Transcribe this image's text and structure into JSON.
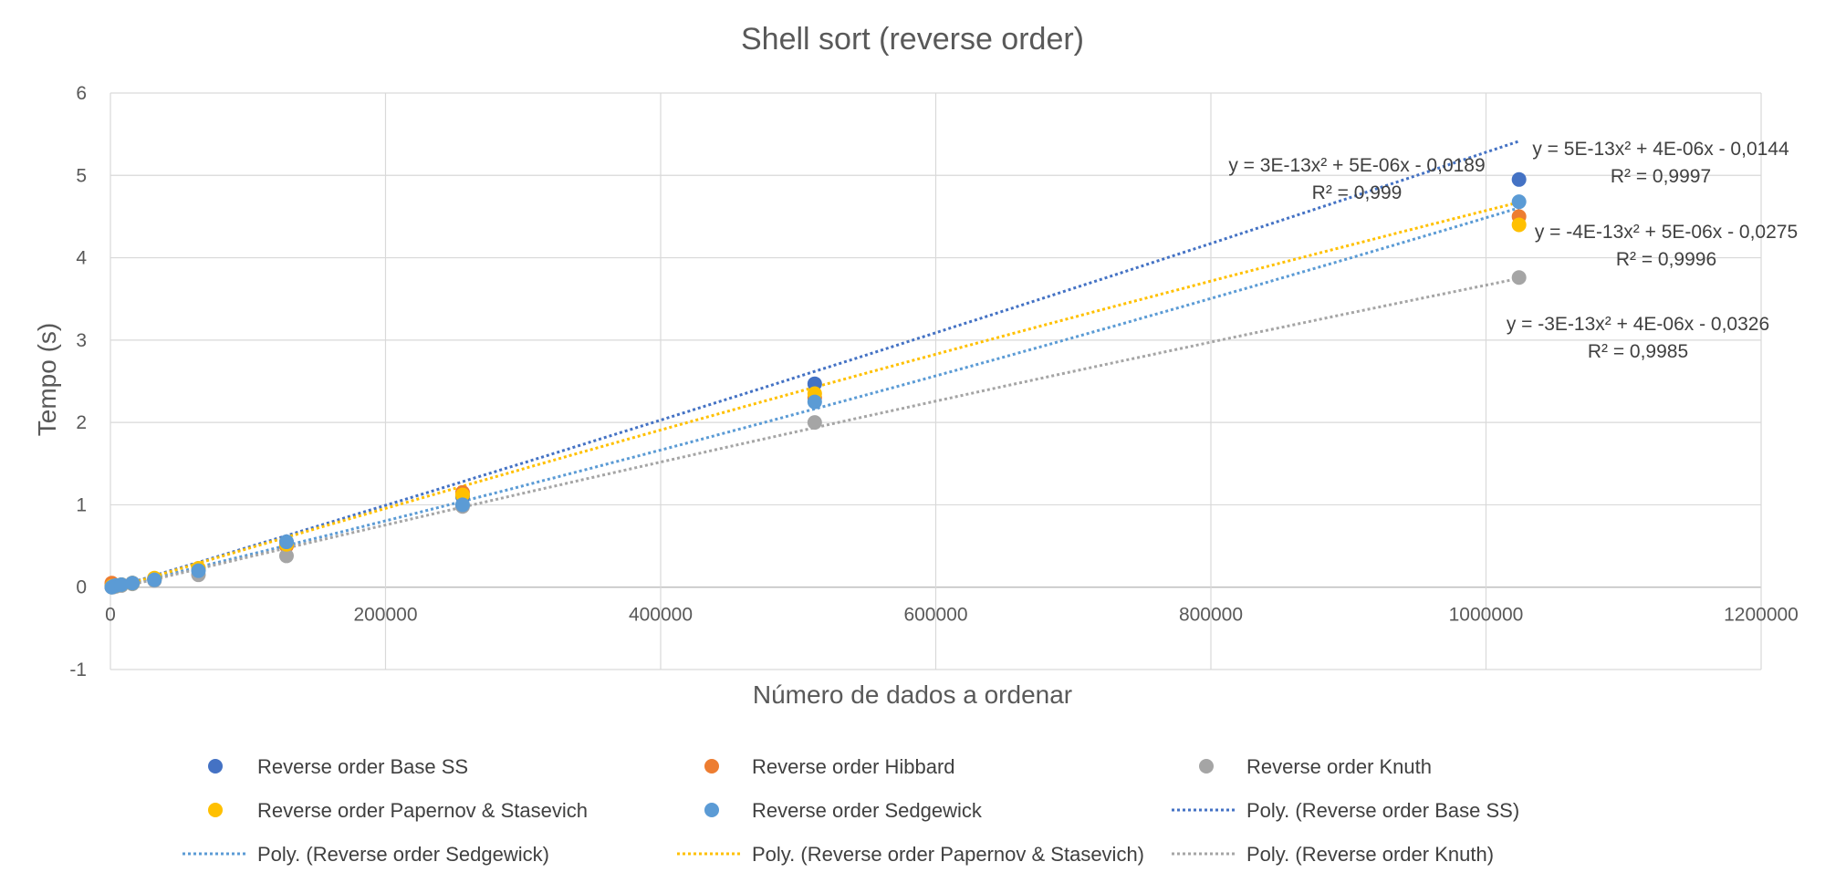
{
  "chart_data": {
    "type": "scatter",
    "title": "Shell sort (reverse order)",
    "xlabel": "Número de dados a ordenar",
    "ylabel": "Tempo (s)",
    "xlim": [
      0,
      1200000
    ],
    "ylim": [
      -1,
      6
    ],
    "x_ticks": [
      "0",
      "200000",
      "400000",
      "600000",
      "800000",
      "1000000",
      "1200000"
    ],
    "y_ticks": [
      "-1",
      "0",
      "1",
      "2",
      "3",
      "4",
      "5",
      "6"
    ],
    "grid": true,
    "legend_position": "bottom",
    "x": [
      1000,
      2000,
      4000,
      8000,
      16000,
      32000,
      64000,
      128000,
      256000,
      512000,
      1024000
    ],
    "series": [
      {
        "name": "Reverse order Base SS",
        "color": "#4472C4",
        "values": [
          0.01,
          0.01,
          0.02,
          0.03,
          0.05,
          0.1,
          0.22,
          0.55,
          1.1,
          2.47,
          4.95
        ]
      },
      {
        "name": "Reverse order Hibbard",
        "color": "#ED7D31",
        "values": [
          0.05,
          0.03,
          0.02,
          0.03,
          0.05,
          0.1,
          0.22,
          0.5,
          1.15,
          2.3,
          4.5
        ]
      },
      {
        "name": "Reverse order Knuth",
        "color": "#A5A5A5",
        "values": [
          0.0,
          0.0,
          0.01,
          0.02,
          0.04,
          0.08,
          0.15,
          0.38,
          0.98,
          2.0,
          3.76
        ]
      },
      {
        "name": "Reverse order Papernov & Stasevich",
        "color": "#FFC000",
        "values": [
          0.01,
          0.01,
          0.02,
          0.03,
          0.05,
          0.11,
          0.23,
          0.52,
          1.12,
          2.35,
          4.4
        ]
      },
      {
        "name": "Reverse order Sedgewick",
        "color": "#5B9BD5",
        "values": [
          0.0,
          0.01,
          0.02,
          0.03,
          0.05,
          0.09,
          0.2,
          0.55,
          1.0,
          2.25,
          4.68
        ]
      }
    ],
    "trendlines": [
      {
        "name": "Poly. (Reverse order Base SS)",
        "color": "#4472C4",
        "coef": [
          3e-13,
          5e-06,
          -0.0189
        ],
        "equation": "y = 3E-13x² + 5E-06x - 0,0189",
        "r2": "R² = 0,999"
      },
      {
        "name": "Poly. (Reverse order Sedgewick)",
        "color": "#5B9BD5",
        "coef": [
          5e-13,
          4e-06,
          -0.0144
        ],
        "equation": "y = 5E-13x² + 4E-06x - 0,0144",
        "r2": "R² = 0,9997"
      },
      {
        "name": "Poly. (Reverse order Papernov & Stasevich)",
        "color": "#FFC000",
        "coef": [
          -4e-13,
          5e-06,
          -0.0275
        ],
        "equation": "y = -4E-13x² + 5E-06x - 0,0275",
        "r2": "R² = 0,9996"
      },
      {
        "name": "Poly. (Reverse order Knuth)",
        "color": "#A5A5A5",
        "coef": [
          -3e-13,
          4e-06,
          -0.0326
        ],
        "equation": "y = -3E-13x² + 4E-06x - 0,0326",
        "r2": "R² = 0,9985"
      }
    ]
  }
}
